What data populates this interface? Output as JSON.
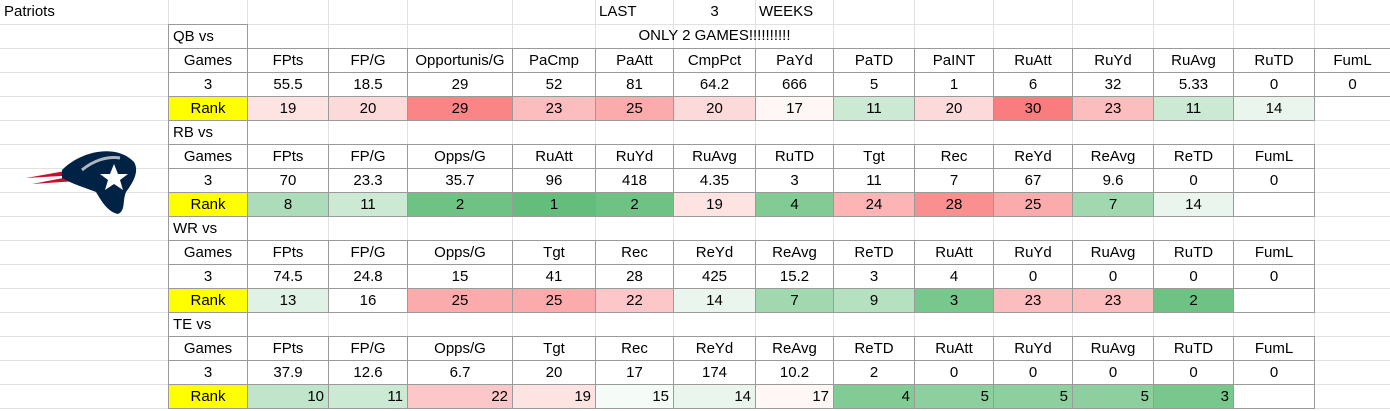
{
  "header": {
    "team": "Patriots",
    "last": "LAST",
    "weeks_count": 3,
    "weeks": "WEEKS"
  },
  "sections": [
    {
      "label": "QB vs",
      "note": "ONLY 2  GAMES!!!!!!!!!!",
      "columns": [
        "Games",
        "FPts",
        "FP/G",
        "Opportunis/G",
        "PaCmp",
        "PaAtt",
        "CmpPct",
        "PaYd",
        "PaTD",
        "PaINT",
        "RuAtt",
        "RuYd",
        "RuAvg",
        "RuTD",
        "FumL"
      ],
      "values": [
        3,
        55.5,
        18.5,
        29,
        52,
        81,
        64.2,
        666,
        5,
        1,
        6,
        32,
        5.33,
        0,
        0
      ],
      "rank_label": "Rank",
      "ranks": [
        19,
        20,
        29,
        23,
        25,
        20,
        17,
        11,
        20,
        30,
        23,
        11,
        14
      ]
    },
    {
      "label": "RB vs",
      "columns": [
        "Games",
        "FPts",
        "FP/G",
        "Opps/G",
        "RuAtt",
        "RuYd",
        "RuAvg",
        "RuTD",
        "Tgt",
        "Rec",
        "ReYd",
        "ReAvg",
        "ReTD",
        "FumL"
      ],
      "values": [
        3,
        70,
        23.3,
        35.7,
        96,
        418,
        4.35,
        3,
        11,
        7,
        67,
        9.6,
        0,
        0
      ],
      "rank_label": "Rank",
      "ranks": [
        8,
        11,
        2,
        1,
        2,
        19,
        4,
        24,
        28,
        25,
        7,
        14
      ]
    },
    {
      "label": "WR vs",
      "columns": [
        "Games",
        "FPts",
        "FP/G",
        "Opps/G",
        "Tgt",
        "Rec",
        "ReYd",
        "ReAvg",
        "ReTD",
        "RuAtt",
        "RuYd",
        "RuAvg",
        "RuTD",
        "FumL"
      ],
      "values": [
        3,
        74.5,
        24.8,
        15,
        41,
        28,
        425,
        15.2,
        3,
        4,
        0,
        0,
        0,
        0
      ],
      "rank_label": "Rank",
      "ranks": [
        13,
        16,
        25,
        25,
        22,
        14,
        7,
        9,
        3,
        23,
        23,
        2
      ]
    },
    {
      "label": "TE vs",
      "columns": [
        "Games",
        "FPts",
        "FP/G",
        "Opps/G",
        "Tgt",
        "Rec",
        "ReYd",
        "ReAvg",
        "ReTD",
        "RuAtt",
        "RuYd",
        "RuAvg",
        "RuTD",
        "FumL"
      ],
      "values": [
        3,
        37.9,
        12.6,
        6.7,
        20,
        17,
        174,
        10.2,
        2,
        0,
        0,
        0,
        0,
        0
      ],
      "rank_label": "Rank",
      "ranks": [
        10,
        11,
        22,
        19,
        15,
        14,
        17,
        4,
        5,
        5,
        5,
        3
      ]
    }
  ]
}
